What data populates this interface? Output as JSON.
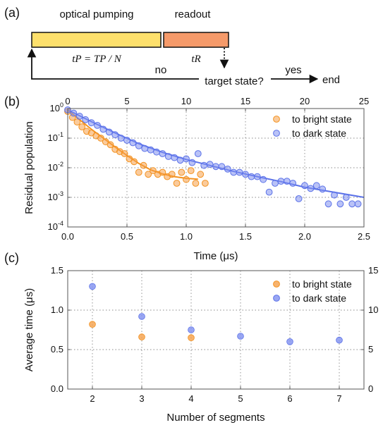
{
  "panel_a": {
    "label": "(a)",
    "pump_title": "optical pumping",
    "readout_title": "readout",
    "pump_formula": "tP = TP / N",
    "readout_formula": "tR",
    "decision": "target state?",
    "no_label": "no",
    "yes_label": "yes",
    "end_label": "end",
    "colors": {
      "pump": "#fde06c",
      "readout": "#f59a6a"
    }
  },
  "colors": {
    "bright": "#f5a04a",
    "dark": "#7f90f0",
    "bright_line": "#f39220",
    "dark_line": "#5b72e8"
  },
  "chart_data": [
    {
      "panel": "(b)",
      "type": "scatter",
      "xlabel": "Time (μs)",
      "ylabel": "Residual population",
      "xlim": [
        0,
        2.5
      ],
      "ylim": [
        0.0001,
        1
      ],
      "yscale": "log",
      "x_ticks": [
        "0.0",
        "0.5",
        "1.0",
        "1.5",
        "2.0",
        "2.5"
      ],
      "y_ticks": [
        "10^0",
        "10^-1",
        "10^-2",
        "10^-3",
        "10^-4"
      ],
      "top_axis": {
        "range": [
          0,
          25
        ],
        "ticks": [
          "0",
          "5",
          "10",
          "15",
          "20",
          "25"
        ]
      },
      "grid": true,
      "legend_position": "top-right",
      "series": [
        {
          "name": "to bright state",
          "color": "#f5a04a",
          "x": [
            0.0,
            0.04,
            0.08,
            0.12,
            0.16,
            0.2,
            0.24,
            0.28,
            0.32,
            0.36,
            0.4,
            0.44,
            0.48,
            0.52,
            0.56,
            0.6,
            0.64,
            0.68,
            0.72,
            0.76,
            0.8,
            0.84,
            0.88,
            0.92,
            0.96,
            1.0,
            1.04,
            1.08,
            1.12,
            1.16
          ],
          "y": [
            0.8,
            0.5,
            0.35,
            0.24,
            0.17,
            0.15,
            0.12,
            0.1,
            0.075,
            0.06,
            0.042,
            0.035,
            0.03,
            0.02,
            0.016,
            0.007,
            0.012,
            0.006,
            0.008,
            0.006,
            0.007,
            0.005,
            0.006,
            0.003,
            0.007,
            0.004,
            0.008,
            0.003,
            0.006,
            0.003
          ]
        },
        {
          "name": "to dark state",
          "color": "#7f90f0",
          "x": [
            0.0,
            0.05,
            0.1,
            0.15,
            0.2,
            0.25,
            0.3,
            0.35,
            0.4,
            0.45,
            0.5,
            0.55,
            0.6,
            0.65,
            0.7,
            0.75,
            0.8,
            0.85,
            0.9,
            0.95,
            1.0,
            1.05,
            1.1,
            1.15,
            1.2,
            1.25,
            1.3,
            1.35,
            1.4,
            1.45,
            1.5,
            1.55,
            1.6,
            1.65,
            1.7,
            1.75,
            1.8,
            1.85,
            1.9,
            1.95,
            2.0,
            2.05,
            2.1,
            2.15,
            2.2,
            2.25,
            2.3,
            2.35,
            2.4,
            2.45
          ],
          "y": [
            0.9,
            0.7,
            0.55,
            0.42,
            0.33,
            0.27,
            0.2,
            0.16,
            0.13,
            0.1,
            0.085,
            0.07,
            0.055,
            0.045,
            0.04,
            0.034,
            0.03,
            0.024,
            0.022,
            0.018,
            0.02,
            0.015,
            0.03,
            0.012,
            0.013,
            0.011,
            0.011,
            0.009,
            0.007,
            0.007,
            0.006,
            0.005,
            0.005,
            0.004,
            0.0015,
            0.003,
            0.0035,
            0.0035,
            0.003,
            0.0009,
            0.0025,
            0.002,
            0.0025,
            0.0019,
            0.0006,
            0.0012,
            0.0006,
            0.001,
            0.0006,
            0.0006
          ]
        }
      ],
      "fits": [
        {
          "series": "to bright state",
          "x": [
            0.0,
            0.1,
            0.2,
            0.3,
            0.4,
            0.5,
            0.6,
            0.7,
            0.8,
            0.9,
            1.0,
            1.1
          ],
          "y": [
            0.9,
            0.42,
            0.2,
            0.1,
            0.05,
            0.026,
            0.014,
            0.0085,
            0.0062,
            0.005,
            0.0044,
            0.0041
          ]
        },
        {
          "series": "to dark state",
          "x": [
            0.0,
            0.2,
            0.4,
            0.6,
            0.8,
            1.0,
            1.2,
            1.4,
            1.6,
            1.8,
            2.0,
            2.2,
            2.5
          ],
          "y": [
            0.9,
            0.36,
            0.15,
            0.065,
            0.033,
            0.019,
            0.012,
            0.0075,
            0.005,
            0.0034,
            0.0022,
            0.0016,
            0.001
          ]
        }
      ]
    },
    {
      "panel": "(c)",
      "type": "scatter",
      "xlabel": "Number of segments",
      "ylabel": "Average time (μs)",
      "xlim": [
        1.5,
        7.5
      ],
      "ylim": [
        0,
        1.5
      ],
      "x_ticks": [
        "2",
        "3",
        "4",
        "5",
        "6",
        "7"
      ],
      "y_ticks": [
        "0.0",
        "0.5",
        "1.0",
        "1.5"
      ],
      "right_axis": {
        "range": [
          0,
          15
        ],
        "ticks": [
          "0",
          "5",
          "10",
          "15"
        ]
      },
      "grid": true,
      "legend_position": "top-right",
      "series": [
        {
          "name": "to bright state",
          "color": "#f5a04a",
          "x": [
            2,
            3,
            4
          ],
          "y": [
            0.82,
            0.66,
            0.65
          ]
        },
        {
          "name": "to dark state",
          "color": "#7f90f0",
          "x": [
            2,
            3,
            4,
            5,
            6,
            7
          ],
          "y": [
            1.3,
            0.92,
            0.75,
            0.67,
            0.6,
            0.62
          ]
        }
      ]
    }
  ]
}
